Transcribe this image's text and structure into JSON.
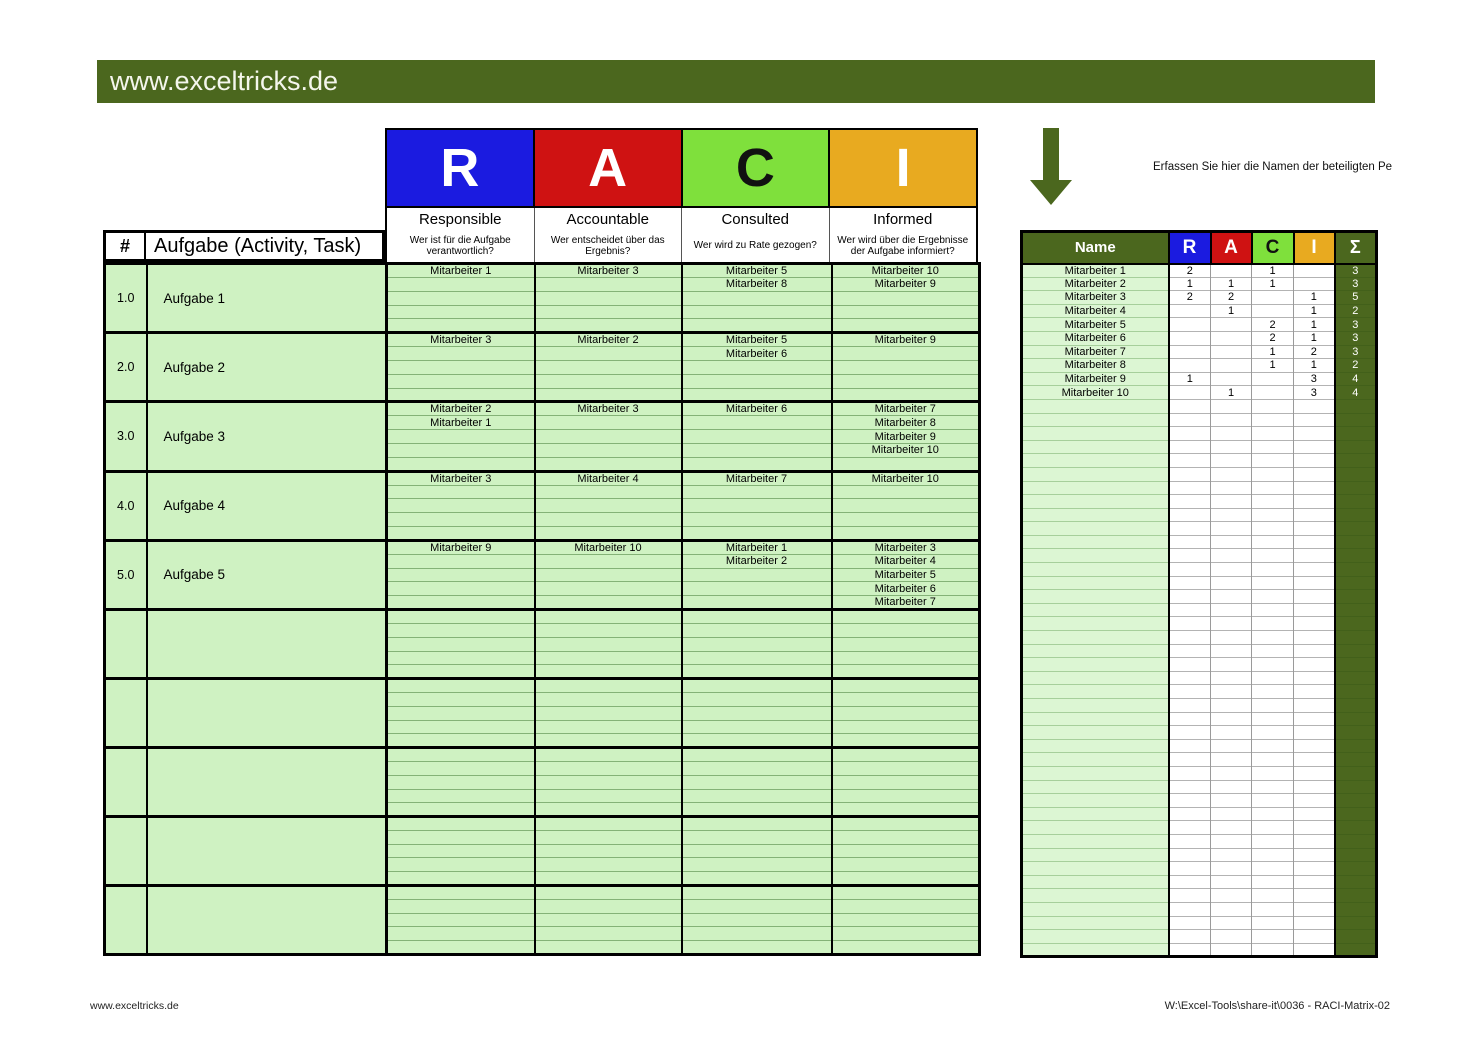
{
  "banner": {
    "title": "www.exceltricks.de"
  },
  "colors": {
    "green_dark": "#4b671e",
    "green_light": "#cff2c2",
    "green_lighter": "#dcf6d3",
    "grid_green": "#84b277",
    "raci_blue": "#1b1be0",
    "raci_red": "#cf1212",
    "raci_green": "#7fe03c",
    "raci_orange": "#e8aa20"
  },
  "raci_columns": [
    {
      "letter": "R",
      "label": "Responsible",
      "question": "Wer ist für die Aufgabe verantwortlich?",
      "color": "#1b1be0",
      "letter_color": "#ffffff"
    },
    {
      "letter": "A",
      "label": "Accountable",
      "question": "Wer entscheidet über das Ergebnis?",
      "color": "#cf1212",
      "letter_color": "#ffffff"
    },
    {
      "letter": "C",
      "label": "Consulted",
      "question": "Wer wird zu Rate gezogen?",
      "color": "#7fe03c",
      "letter_color": "#111111"
    },
    {
      "letter": "I",
      "label": "Informed",
      "question": "Wer wird über die Ergebnisse der Aufgabe informiert?",
      "color": "#e8aa20",
      "letter_color": "#ffffff"
    }
  ],
  "main_table": {
    "number_header": "#",
    "task_header": "Aufgabe (Activity, Task)",
    "rows_per_block": 5,
    "empty_blocks": 5,
    "blocks": [
      {
        "num": "1.0",
        "task": "Aufgabe 1",
        "rows": [
          [
            "Mitarbeiter 1",
            "Mitarbeiter 3",
            "Mitarbeiter 5",
            "Mitarbeiter 10"
          ],
          [
            "",
            "",
            "Mitarbeiter 8",
            "Mitarbeiter 9"
          ],
          [
            "",
            "",
            "",
            ""
          ],
          [
            "",
            "",
            "",
            ""
          ],
          [
            "",
            "",
            "",
            ""
          ]
        ]
      },
      {
        "num": "2.0",
        "task": "Aufgabe 2",
        "rows": [
          [
            "Mitarbeiter 3",
            "Mitarbeiter 2",
            "Mitarbeiter 5",
            "Mitarbeiter 9"
          ],
          [
            "",
            "",
            "Mitarbeiter 6",
            ""
          ],
          [
            "",
            "",
            "",
            ""
          ],
          [
            "",
            "",
            "",
            ""
          ],
          [
            "",
            "",
            "",
            ""
          ]
        ]
      },
      {
        "num": "3.0",
        "task": "Aufgabe 3",
        "rows": [
          [
            "Mitarbeiter 2",
            "Mitarbeiter 3",
            "Mitarbeiter 6",
            "Mitarbeiter 7"
          ],
          [
            "Mitarbeiter 1",
            "",
            "",
            "Mitarbeiter 8"
          ],
          [
            "",
            "",
            "",
            "Mitarbeiter 9"
          ],
          [
            "",
            "",
            "",
            "Mitarbeiter 10"
          ],
          [
            "",
            "",
            "",
            ""
          ]
        ]
      },
      {
        "num": "4.0",
        "task": "Aufgabe 4",
        "rows": [
          [
            "Mitarbeiter 3",
            "Mitarbeiter 4",
            "Mitarbeiter 7",
            "Mitarbeiter 10"
          ],
          [
            "",
            "",
            "",
            ""
          ],
          [
            "",
            "",
            "",
            ""
          ],
          [
            "",
            "",
            "",
            ""
          ],
          [
            "",
            "",
            "",
            ""
          ]
        ]
      },
      {
        "num": "5.0",
        "task": "Aufgabe 5",
        "rows": [
          [
            "Mitarbeiter 9",
            "Mitarbeiter 10",
            "Mitarbeiter 1",
            "Mitarbeiter 3"
          ],
          [
            "",
            "",
            "Mitarbeiter 2",
            "Mitarbeiter 4"
          ],
          [
            "",
            "",
            "",
            "Mitarbeiter 5"
          ],
          [
            "",
            "",
            "",
            "Mitarbeiter 6"
          ],
          [
            "",
            "",
            "",
            "Mitarbeiter 7"
          ]
        ]
      }
    ]
  },
  "side_panel": {
    "arrow_icon": "down-arrow",
    "note": "Erfassen Sie hier die Namen der beteiligten Pe",
    "table": {
      "name_header": "Name",
      "sum_header": "Σ",
      "empty_rows": 41,
      "rows": [
        {
          "name": "Mitarbeiter 1",
          "r": "2",
          "a": "",
          "c": "1",
          "i": "",
          "sum": "3"
        },
        {
          "name": "Mitarbeiter 2",
          "r": "1",
          "a": "1",
          "c": "1",
          "i": "",
          "sum": "3"
        },
        {
          "name": "Mitarbeiter 3",
          "r": "2",
          "a": "2",
          "c": "",
          "i": "1",
          "sum": "5"
        },
        {
          "name": "Mitarbeiter 4",
          "r": "",
          "a": "1",
          "c": "",
          "i": "1",
          "sum": "2"
        },
        {
          "name": "Mitarbeiter 5",
          "r": "",
          "a": "",
          "c": "2",
          "i": "1",
          "sum": "3"
        },
        {
          "name": "Mitarbeiter 6",
          "r": "",
          "a": "",
          "c": "2",
          "i": "1",
          "sum": "3"
        },
        {
          "name": "Mitarbeiter 7",
          "r": "",
          "a": "",
          "c": "1",
          "i": "2",
          "sum": "3"
        },
        {
          "name": "Mitarbeiter 8",
          "r": "",
          "a": "",
          "c": "1",
          "i": "1",
          "sum": "2"
        },
        {
          "name": "Mitarbeiter 9",
          "r": "1",
          "a": "",
          "c": "",
          "i": "3",
          "sum": "4"
        },
        {
          "name": "Mitarbeiter 10",
          "r": "",
          "a": "1",
          "c": "",
          "i": "3",
          "sum": "4"
        }
      ]
    }
  },
  "footer": {
    "left": "www.exceltricks.de",
    "right": "W:\\Excel-Tools\\share-it\\0036 - RACI-Matrix-02"
  }
}
